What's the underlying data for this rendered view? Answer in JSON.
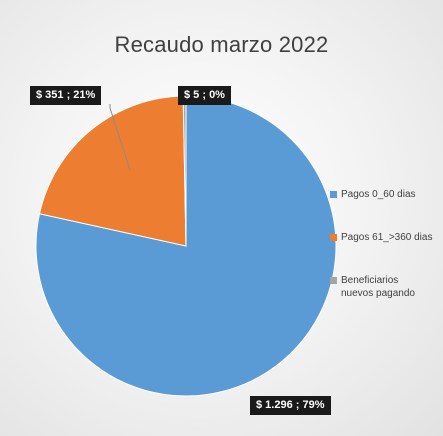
{
  "chart_data": {
    "type": "pie",
    "title": "Recaudo marzo 2022",
    "series": [
      {
        "name": "Pagos 0_60 dias",
        "value": 1296,
        "label": "$ 1.296 ; 79%",
        "color": "#5b9bd5"
      },
      {
        "name": "Pagos 61_>360 dias",
        "value": 351,
        "label": "$ 351 ; 21%",
        "color": "#ed7d31"
      },
      {
        "name": "Beneficiarios nuevos pagando",
        "value": 5,
        "label": "$ 5 ; 0%",
        "color": "#a5a5a5"
      }
    ],
    "legend_position": "right",
    "data_labels": true
  }
}
